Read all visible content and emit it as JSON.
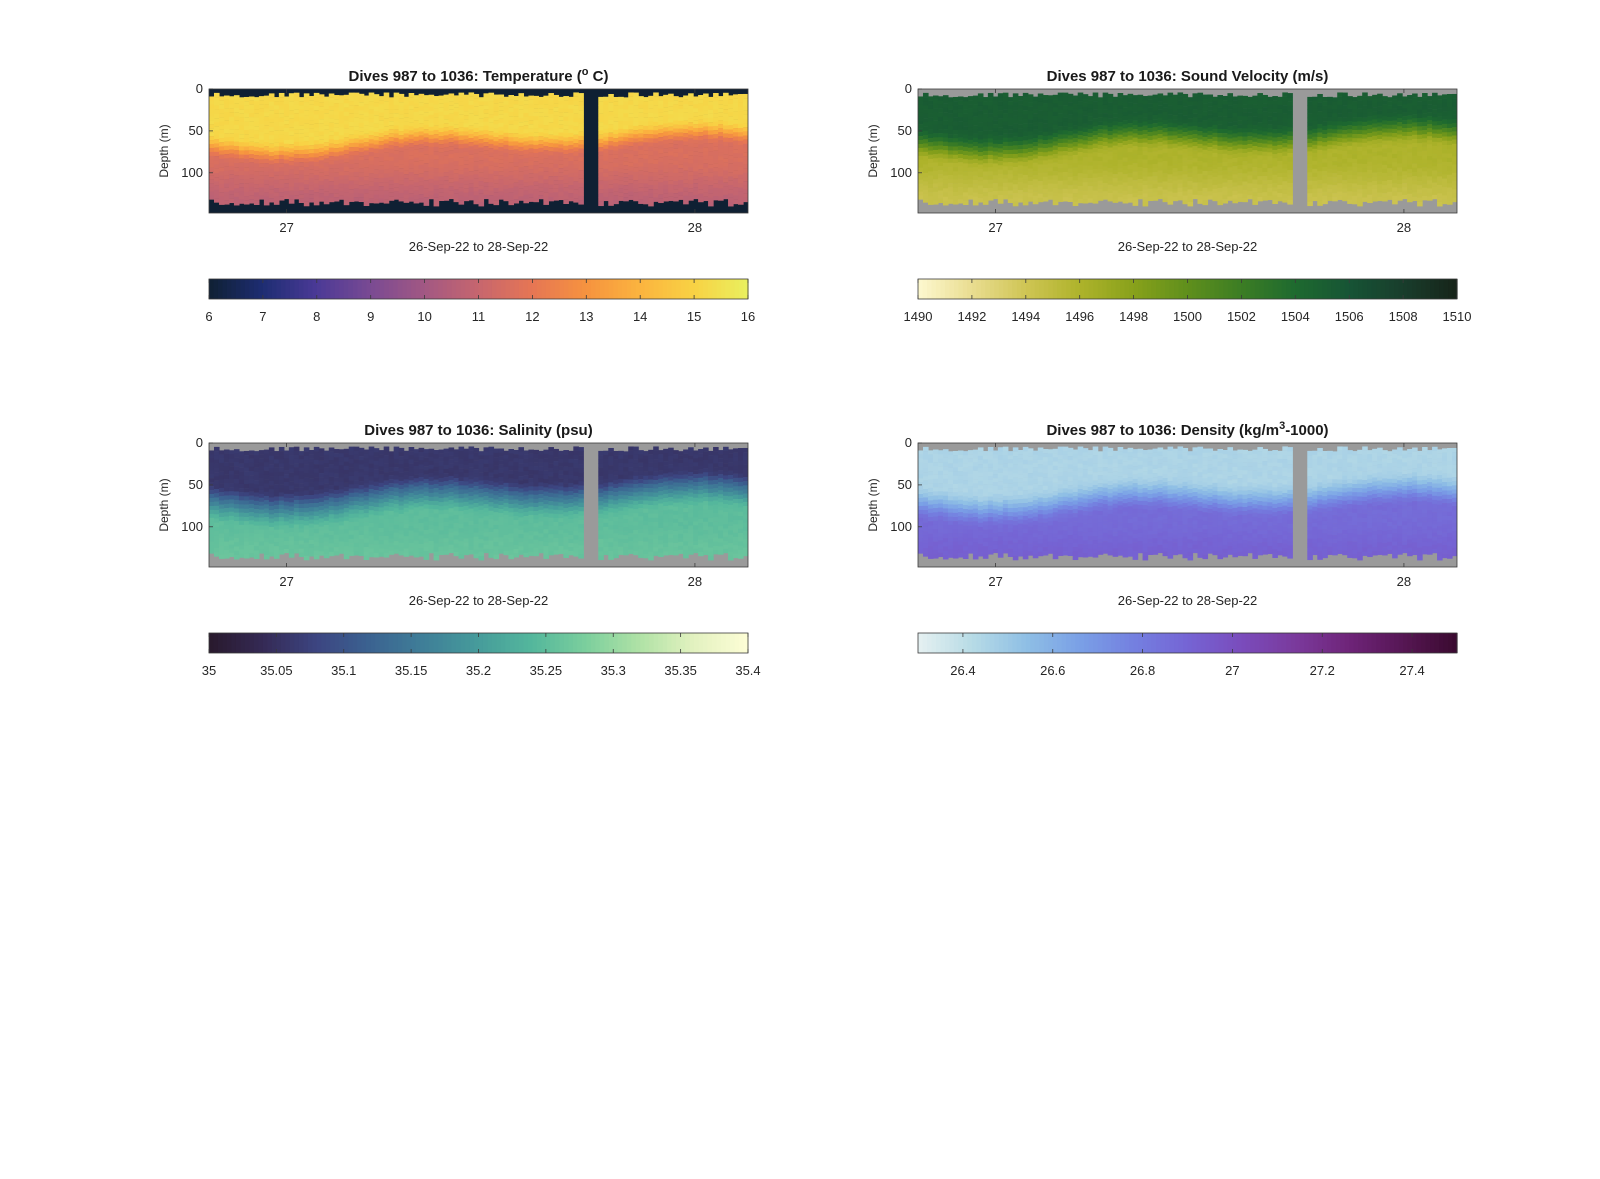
{
  "chart_data": [
    {
      "type": "heatmap",
      "title_prefix": "Dives 987 to 1036: Temperature (",
      "title_sup": "o",
      "title_suffix": " C)",
      "xlabel": "26-Sep-22 to 28-Sep-22",
      "ylabel": "Depth (m)",
      "xticks": [
        "27",
        "28"
      ],
      "yticks": [
        0,
        50,
        100
      ],
      "ylim": [
        0,
        148
      ],
      "xlim": [
        26.81,
        28.13
      ],
      "clim": [
        6,
        16
      ],
      "colorbar_ticks": [
        "6",
        "7",
        "8",
        "9",
        "10",
        "11",
        "12",
        "13",
        "14",
        "15",
        "16"
      ],
      "colormap": [
        "#0f2033",
        "#1e2d73",
        "#4b3a96",
        "#7a4a93",
        "#a25883",
        "#c7666e",
        "#e67654",
        "#f6933f",
        "#fbb43f",
        "#f8d244",
        "#e9f05f"
      ],
      "background": "#0f2033",
      "gap_start": 27.73,
      "gap_end": 27.76,
      "profile": {
        "surface": 15.2,
        "d1": 48,
        "v1": 15.2,
        "d2": 78,
        "v2": 11.6,
        "bottom": 10.7
      }
    },
    {
      "type": "heatmap",
      "title_prefix": "Dives 987 to 1036: Sound Velocity (m/s)",
      "title_sup": "",
      "title_suffix": "",
      "xlabel": "26-Sep-22 to 28-Sep-22",
      "ylabel": "Depth (m)",
      "xticks": [
        "27",
        "28"
      ],
      "yticks": [
        0,
        50,
        100
      ],
      "ylim": [
        0,
        148
      ],
      "xlim": [
        26.81,
        28.13
      ],
      "clim": [
        1490,
        1510
      ],
      "colorbar_ticks": [
        "1490",
        "1492",
        "1494",
        "1496",
        "1498",
        "1500",
        "1502",
        "1504",
        "1506",
        "1508",
        "1510"
      ],
      "colormap": [
        "#fdf8d0",
        "#e9dd90",
        "#cfc554",
        "#aeb32b",
        "#88a11b",
        "#5f8f1c",
        "#3c7d24",
        "#1e6a2f",
        "#175435",
        "#183d2c",
        "#172419"
      ],
      "background": "#9a9a9a",
      "gap_start": 27.73,
      "gap_end": 27.76,
      "profile": {
        "surface": 1505.2,
        "d1": 42,
        "v1": 1504.8,
        "d2": 80,
        "v2": 1496.0,
        "bottom": 1494.3
      }
    },
    {
      "type": "heatmap",
      "title_prefix": "Dives 987 to 1036: Salinity (psu)",
      "title_sup": "",
      "title_suffix": "",
      "xlabel": "26-Sep-22 to 28-Sep-22",
      "ylabel": "Depth (m)",
      "xticks": [
        "27",
        "28"
      ],
      "yticks": [
        0,
        50,
        100
      ],
      "ylim": [
        0,
        148
      ],
      "xlim": [
        26.81,
        28.13
      ],
      "clim": [
        35,
        35.4
      ],
      "colorbar_ticks": [
        "35",
        "35.05",
        "35.1",
        "35.15",
        "35.2",
        "35.25",
        "35.3",
        "35.35",
        "35.4"
      ],
      "colormap": [
        "#28192c",
        "#352a55",
        "#3c4581",
        "#3b6391",
        "#3f7f98",
        "#469c9b",
        "#54b79c",
        "#7ccf9d",
        "#b0e2a6",
        "#e3f2c0",
        "#fdfdd6"
      ],
      "background": "#9a9a9a",
      "gap_start": 27.73,
      "gap_end": 27.76,
      "profile": {
        "surface": 35.06,
        "d1": 52,
        "v1": 35.12,
        "d2": 90,
        "v2": 35.25,
        "bottom": 35.26
      }
    },
    {
      "type": "heatmap",
      "title_prefix": "Dives 987 to 1036: Density (kg/m",
      "title_sup": "3",
      "title_suffix": "-1000)",
      "xlabel": "26-Sep-22 to 28-Sep-22",
      "ylabel": "Depth (m)",
      "xticks": [
        "27",
        "28"
      ],
      "yticks": [
        0,
        50,
        100
      ],
      "ylim": [
        0,
        148
      ],
      "xlim": [
        26.81,
        28.13
      ],
      "clim": [
        26.3,
        27.5
      ],
      "colorbar_ticks": [
        "26.4",
        "26.6",
        "26.8",
        "27",
        "27.2",
        "27.4"
      ],
      "colormap": [
        "#e6f1f1",
        "#b7dbe6",
        "#8fbfe5",
        "#7aa0e6",
        "#7480e0",
        "#7564d4",
        "#7a4cbc",
        "#7a3a9c",
        "#6e2479",
        "#561654",
        "#3a0a2f"
      ],
      "background": "#9a9a9a",
      "gap_start": 27.73,
      "gap_end": 27.76,
      "profile": {
        "surface": 26.45,
        "d1": 52,
        "v1": 26.52,
        "d2": 88,
        "v2": 26.87,
        "bottom": 26.92
      }
    }
  ]
}
